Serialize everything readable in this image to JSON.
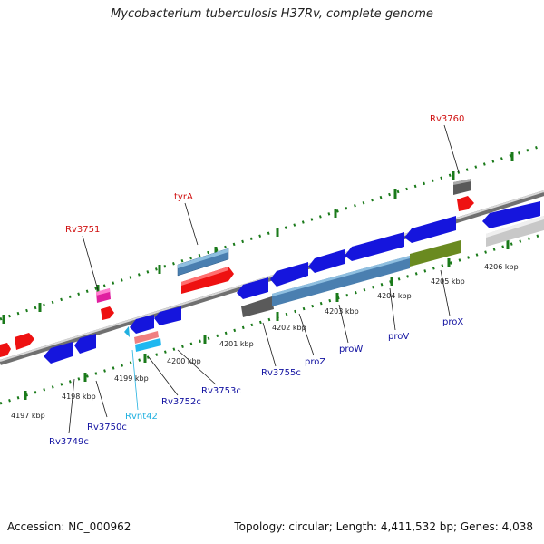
{
  "title": "Mycobacterium tuberculosis H37Rv, complete genome",
  "footer": {
    "accession": "Accession: NC_000962",
    "summary": "Topology: circular; Length: 4,411,532 bp; Genes: 4,038"
  },
  "colors": {
    "backbone": "#8a8a8a",
    "tick": "#1a7a1a",
    "label_black": "#222222",
    "label_red": "#d01010",
    "label_blue": "#1010a0",
    "label_cyan": "#20b0e0"
  },
  "kbp_labels": [
    "4197 kbp",
    "4198 kbp",
    "4199 kbp",
    "4200 kbp",
    "4201 kbp",
    "4202 kbp",
    "4203 kbp",
    "4204 kbp",
    "4205 kbp",
    "4206 kbp"
  ],
  "gene_labels": [
    {
      "text": "tyrA",
      "color": "red"
    },
    {
      "text": "Rv3751",
      "color": "red"
    },
    {
      "text": "Rv3760",
      "color": "red"
    },
    {
      "text": "Rv3749c",
      "color": "blue"
    },
    {
      "text": "Rv3750c",
      "color": "blue"
    },
    {
      "text": "Rvnt42",
      "color": "cyan"
    },
    {
      "text": "Rv3752c",
      "color": "blue"
    },
    {
      "text": "Rv3753c",
      "color": "blue"
    },
    {
      "text": "Rv3755c",
      "color": "blue"
    },
    {
      "text": "proZ",
      "color": "blue"
    },
    {
      "text": "proW",
      "color": "blue"
    },
    {
      "text": "proV",
      "color": "blue"
    },
    {
      "text": "proX",
      "color": "blue"
    }
  ]
}
